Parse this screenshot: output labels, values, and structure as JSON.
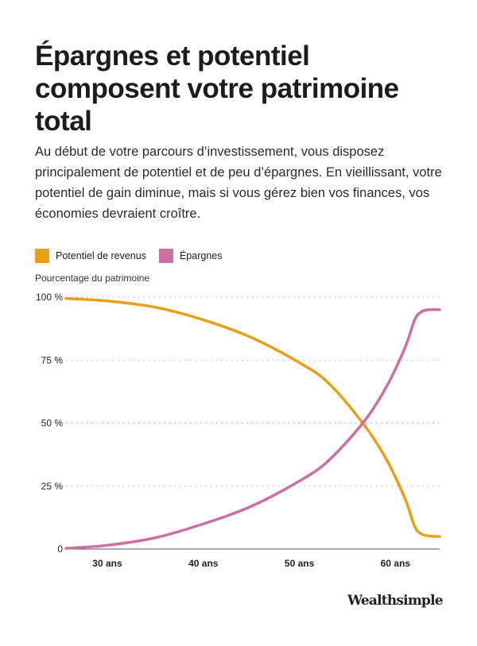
{
  "title": "Épargnes et potentiel composent votre patrimoine total",
  "subtitle": "Au début de votre parcours d’investissement, vous disposez principalement de potentiel et de peu d’épargnes. En vieillissant, votre potentiel de gain diminue, mais si vous gérez bien vos finances, vos économies devraient croître.",
  "logo": "Wealthsimple",
  "chart_data": {
    "type": "line",
    "ylabel": "Pourcentage du patrimoine",
    "xlabel": "",
    "xlim": [
      25.7,
      64.6
    ],
    "ylim": [
      0,
      100
    ],
    "grid": true,
    "legend_placement": "top-left",
    "x_ticks": [
      30,
      40,
      50,
      60
    ],
    "x_tick_labels": [
      "30 ans",
      "40 ans",
      "50 ans",
      "60 ans"
    ],
    "y_ticks": [
      0,
      25,
      50,
      75,
      100
    ],
    "y_tick_labels": [
      "0",
      "25 %",
      "50 %",
      "75 %",
      "100 %"
    ],
    "series": [
      {
        "name": "Potentiel de revenus",
        "color": "#E8A01A",
        "x": [
          25.7,
          30,
          35,
          40,
          45,
          50,
          53,
          56.6,
          59,
          61,
          62,
          62.7,
          63.5,
          64.6
        ],
        "y": [
          99.5,
          98.5,
          96,
          91,
          84,
          74,
          66,
          50,
          36,
          20,
          9,
          6,
          5.2,
          5
        ]
      },
      {
        "name": "Épargnes",
        "color": "#CC6FA3",
        "x": [
          25.7,
          30,
          35,
          40,
          45,
          50,
          53,
          56.6,
          59,
          61,
          62,
          62.7,
          63.5,
          64.6
        ],
        "y": [
          0.3,
          1.5,
          4.5,
          10,
          17,
          27,
          35,
          50,
          64,
          80,
          91,
          94.2,
          95,
          95
        ]
      }
    ]
  }
}
